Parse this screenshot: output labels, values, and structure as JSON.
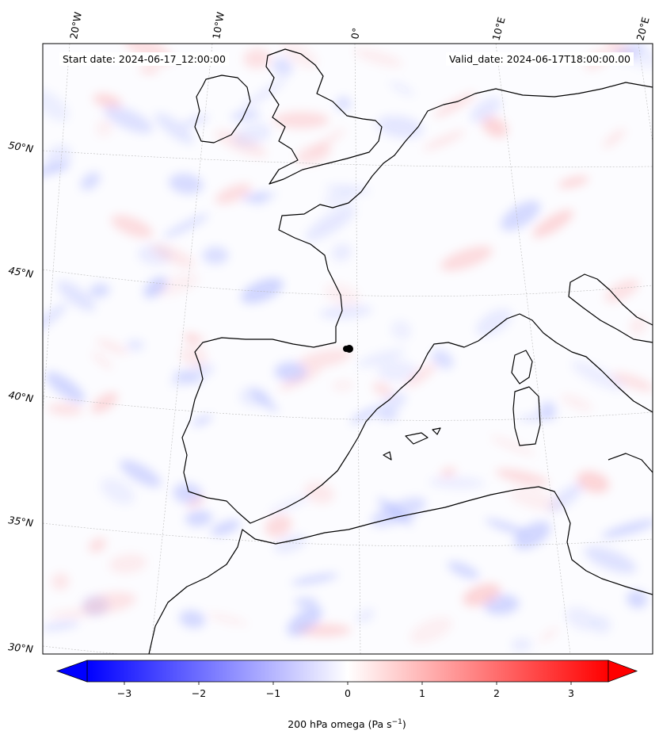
{
  "header": {
    "start_date": "Start date: 2024-06-17_12:00:00",
    "valid_date": "Valid_date: 2024-06-17T18:00:00.00"
  },
  "map": {
    "projection": "lambert-conformal",
    "region": "Western Europe / Iberia / Western Mediterranean",
    "lon_labels": [
      "20°W",
      "10°W",
      "0°",
      "10°E",
      "20°E"
    ],
    "lat_labels": [
      "50°N",
      "45°N",
      "40°N",
      "35°N",
      "30°N"
    ],
    "field": "200 hPa omega",
    "gridlines": true,
    "marker": {
      "name": "observation-point",
      "color": "#000000"
    }
  },
  "colorbar": {
    "label_text": "200 hPa omega (Pa s",
    "label_exponent": "−1",
    "label_close": ")",
    "tick_labels": [
      "−3",
      "−2",
      "−1",
      "0",
      "1",
      "2",
      "3"
    ],
    "tick_values": [
      -3,
      -2,
      -1,
      0,
      1,
      2,
      3
    ],
    "range": [
      -3.5,
      3.5
    ],
    "extend": "both",
    "colormap": "bwr",
    "color_min": "#0000ff",
    "color_mid": "#ffffff",
    "color_max": "#ff0000"
  }
}
